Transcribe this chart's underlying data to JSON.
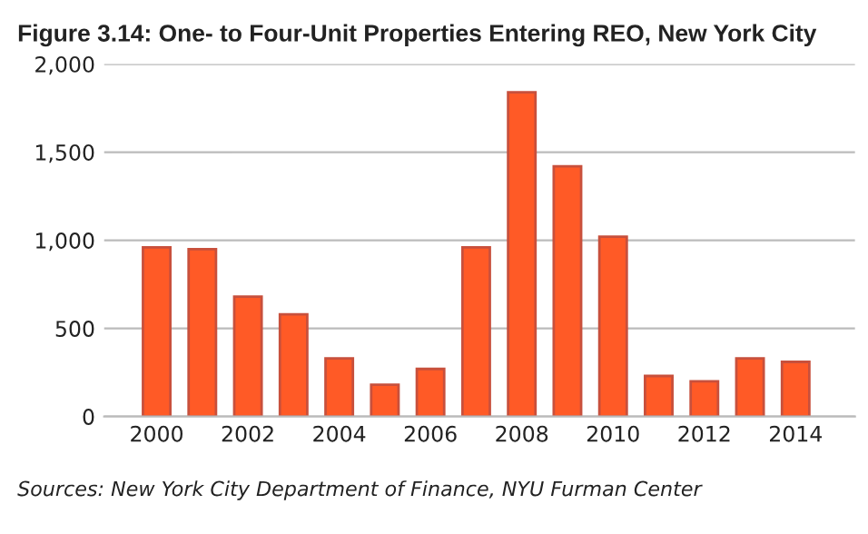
{
  "chart_data": {
    "type": "bar",
    "title": "Figure 3.14: One- to Four-Unit Properties Entering REO, New York City",
    "x": [
      2000,
      2001,
      2002,
      2003,
      2004,
      2005,
      2006,
      2007,
      2008,
      2009,
      2010,
      2011,
      2012,
      2013,
      2014
    ],
    "values": [
      960,
      950,
      680,
      580,
      330,
      180,
      270,
      960,
      1840,
      1420,
      1020,
      230,
      200,
      330,
      310
    ],
    "color": "#ff5a26",
    "xlim": [
      1998.85,
      2015.3
    ],
    "xticks": [
      2000,
      2002,
      2004,
      2006,
      2008,
      2010,
      2012,
      2014
    ],
    "ylim": [
      0,
      2000
    ],
    "yticks": [
      0,
      {
        "value": 500,
        "label": "500"
      },
      {
        "value": 1000,
        "label": "1,000"
      },
      {
        "value": 1500,
        "label": "1,500"
      },
      {
        "value": 2000,
        "label": "2,000"
      }
    ],
    "grid": "y",
    "annotations": [
      "Sources: New York City Department of Finance, NYU Furman Center"
    ]
  }
}
